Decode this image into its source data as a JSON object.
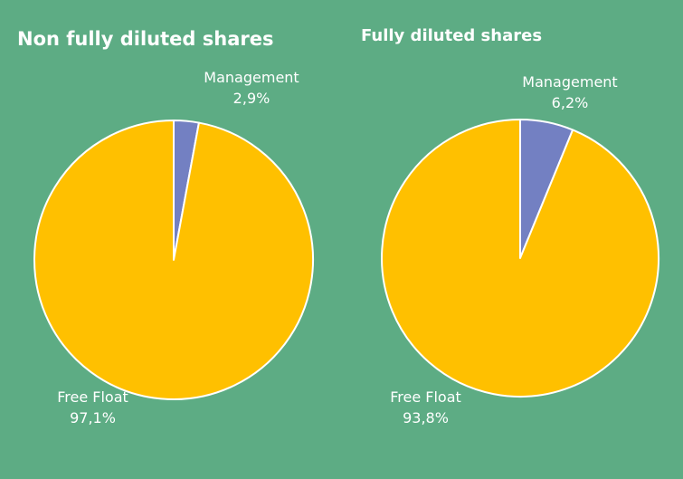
{
  "chart_data": [
    {
      "type": "pie",
      "title": "Non fully diluted shares",
      "slices": [
        {
          "label": "Management",
          "value": 2.9,
          "value_label": "2,9%",
          "color": "#7380c2"
        },
        {
          "label": "Free Float",
          "value": 97.1,
          "value_label": "97,1%",
          "color": "#ffc000"
        }
      ]
    },
    {
      "type": "pie",
      "title": "Fully diluted  shares",
      "slices": [
        {
          "label": "Management",
          "value": 6.2,
          "value_label": "6,2%",
          "color": "#7380c2"
        },
        {
          "label": "Free Float",
          "value": 93.8,
          "value_label": "93,8%",
          "color": "#ffc000"
        }
      ]
    }
  ],
  "colors": {
    "background": "#5dac84",
    "slice_border": "#ffffff"
  }
}
